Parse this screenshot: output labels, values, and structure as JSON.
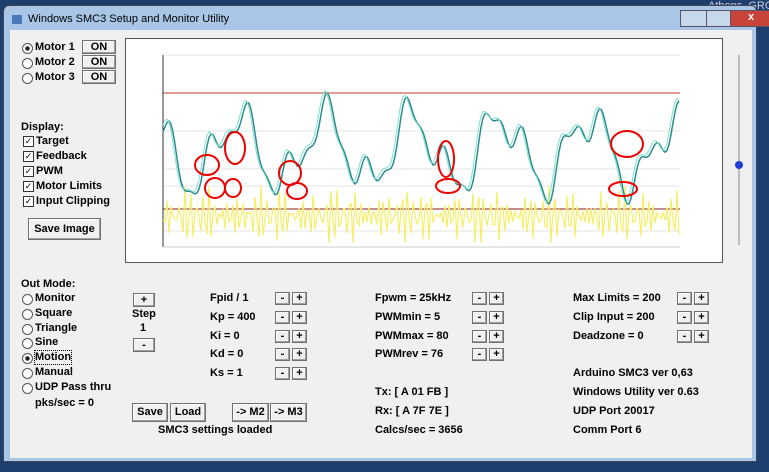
{
  "window": {
    "title": "Windows SMC3 Setup and Monitor Utility"
  },
  "desktop": {
    "weather": "Athens, GRC"
  },
  "motors": [
    {
      "label": "Motor 1",
      "button": "ON"
    },
    {
      "label": "Motor 2",
      "button": "ON"
    },
    {
      "label": "Motor 3",
      "button": "ON"
    }
  ],
  "display": {
    "label": "Display:",
    "options": [
      "Target",
      "Feedback",
      "PWM",
      "Motor Limits",
      "Input Clipping"
    ]
  },
  "save_image": "Save Image",
  "out_mode": {
    "label": "Out Mode:",
    "options": [
      "Monitor",
      "Square",
      "Triangle",
      "Sine",
      "Motion",
      "Manual",
      "UDP Pass thru"
    ]
  },
  "pks_sec": "pks/sec = 0",
  "step": {
    "plus": "+",
    "label": "Step",
    "value": "1",
    "minus": "-"
  },
  "spin": {
    "minus": "-",
    "plus": "+"
  },
  "params_col1": [
    "Fpid / 1",
    "Kp = 400",
    "Ki = 0",
    "Kd = 0",
    "Ks = 1"
  ],
  "params_col2": [
    "Fpwm = 25kHz",
    "PWMmin = 5",
    "PWMmax = 80",
    "PWMrev = 76"
  ],
  "params_col3": [
    "Max Limits = 200",
    "Clip Input = 200",
    "Deadzone = 0"
  ],
  "buttons": [
    "Save",
    "Load",
    "-> M2",
    "-> M3"
  ],
  "status": "SMC3 settings loaded",
  "comms": [
    "Tx: [ A 01 FB ]",
    "Rx: [ A 7F 7E ]",
    "Calcs/sec = 3656"
  ],
  "info": [
    "Arduino SMC3 ver 0,63",
    "Windows Utility ver 0.63",
    "UDP Port 20017",
    "Comm Port 6"
  ]
}
